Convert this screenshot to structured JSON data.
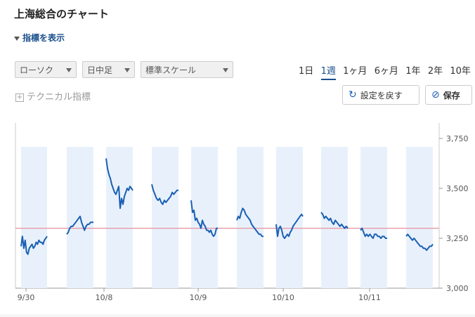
{
  "title": "上海総合のチャート",
  "indicator_toggle": "指標を表示",
  "selects": {
    "chart_type": "ローソク",
    "interval": "日中足",
    "scale": "標準スケール"
  },
  "periods": [
    "1日",
    "1週",
    "1ヶ月",
    "6ヶ月",
    "1年",
    "2年",
    "10年"
  ],
  "active_period": "1週",
  "technical_label": "テクニカル指標",
  "reset_button": "設定を戻す",
  "save_button": "保存",
  "colors": {
    "line": "#1a5fb4",
    "band": "#e8f1fb",
    "reference": "#e8a0ac",
    "accent": "#1a4f8c"
  },
  "chart_data": {
    "type": "line",
    "yaxis_side": "right",
    "ylim": [
      3000,
      3750
    ],
    "yticks": [
      3000,
      3250,
      3500,
      3750
    ],
    "ytick_labels": [
      "3,000",
      "3,250",
      "3,500",
      "3,750"
    ],
    "xticks": [
      {
        "label": "9/30",
        "index": 0
      },
      {
        "label": "10/8",
        "index": 1.95
      },
      {
        "label": "10/9",
        "index": 4.15
      },
      {
        "label": "10/10",
        "index": 6.15
      },
      {
        "label": "10/11",
        "index": 8.2
      }
    ],
    "reference_line": 3300,
    "sessions": [
      {
        "values": [
          3210,
          3260,
          3200,
          3240,
          3180,
          3170,
          3200,
          3210,
          3220,
          3200,
          3210,
          3230,
          3220,
          3240,
          3230,
          3230,
          3220,
          3240,
          3250,
          3260
        ]
      },
      {
        "values": [
          3270,
          3280,
          3300,
          3310,
          3310,
          3320,
          3330,
          3340,
          3350,
          3360,
          3330,
          3310,
          3290,
          3310,
          3320,
          3320,
          3330,
          3330,
          3330
        ]
      },
      {
        "values": [
          3650,
          3600,
          3570,
          3550,
          3520,
          3500,
          3480,
          3470,
          3490,
          3510,
          3400,
          3450,
          3420,
          3460,
          3480,
          3500,
          3490,
          3510,
          3500,
          3490
        ]
      },
      {
        "values": [
          3520,
          3490,
          3470,
          3450,
          3440,
          3450,
          3430,
          3420,
          3440,
          3430,
          3440,
          3450,
          3460,
          3480,
          3470,
          3480,
          3490,
          3490
        ]
      },
      {
        "values": [
          3440,
          3380,
          3390,
          3340,
          3350,
          3330,
          3320,
          3300,
          3340,
          3320,
          3310,
          3290,
          3290,
          3280,
          3290,
          3270,
          3260,
          3270,
          3300,
          3300
        ]
      },
      {
        "values": [
          3340,
          3360,
          3350,
          3380,
          3400,
          3390,
          3370,
          3360,
          3350,
          3340,
          3320,
          3310,
          3300,
          3290,
          3280,
          3270,
          3270,
          3260,
          3260
        ]
      },
      {
        "values": [
          3320,
          3260,
          3300,
          3310,
          3290,
          3260,
          3250,
          3260,
          3270,
          3260,
          3280,
          3290,
          3310,
          3320,
          3330,
          3340,
          3350,
          3360,
          3370,
          3360
        ]
      },
      {
        "values": [
          3380,
          3370,
          3350,
          3360,
          3350,
          3340,
          3350,
          3330,
          3320,
          3340,
          3330,
          3320,
          3310,
          3320,
          3310,
          3300,
          3310,
          3300
        ]
      },
      {
        "values": [
          3290,
          3300,
          3280,
          3260,
          3270,
          3260,
          3270,
          3260,
          3250,
          3270,
          3270,
          3260,
          3260,
          3250,
          3260,
          3260,
          3250,
          3250
        ]
      },
      {
        "values": [
          3260,
          3270,
          3260,
          3250,
          3240,
          3250,
          3240,
          3230,
          3220,
          3210,
          3210,
          3200,
          3200,
          3190,
          3200,
          3210,
          3210,
          3220
        ]
      }
    ]
  }
}
